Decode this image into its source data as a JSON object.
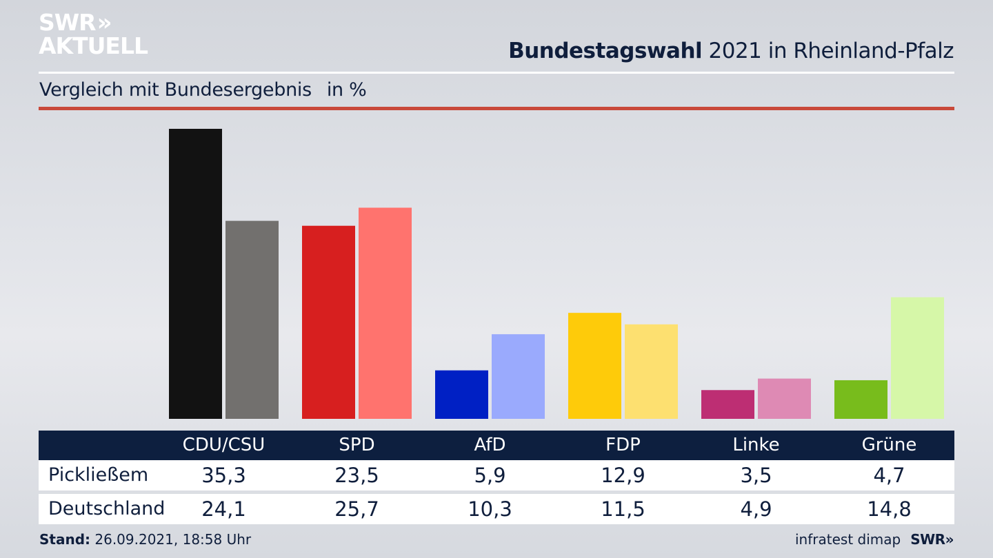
{
  "brand": {
    "logo_line1": "SWR",
    "logo_chevron": "»",
    "logo_line2": "AKTUELL"
  },
  "header": {
    "title_bold": "Bundestagswahl",
    "title_rest": " 2021 in Rheinland-Pfalz",
    "subtitle": "Vergleich mit Bundesergebnis",
    "unit": "in %"
  },
  "colors": {
    "accent_rule": "#c9493a",
    "table_header_bg": "#0d1f3f",
    "text": "#0f1e3c"
  },
  "table": {
    "headers": [
      "CDU/CSU",
      "SPD",
      "AfD",
      "FDP",
      "Linke",
      "Grüne"
    ],
    "rows": [
      {
        "label": "Pickließem",
        "values": [
          "35,3",
          "23,5",
          "5,9",
          "12,9",
          "3,5",
          "4,7"
        ]
      },
      {
        "label": "Deutschland",
        "values": [
          "24,1",
          "25,7",
          "10,3",
          "11,5",
          "4,9",
          "14,8"
        ]
      }
    ]
  },
  "footer": {
    "stand_label": "Stand:",
    "stand_value": " 26.09.2021, 18:58 Uhr",
    "source": "infratest dimap",
    "swr": "SWR»"
  },
  "chart_data": {
    "type": "bar",
    "title": "Bundestagswahl 2021 in Rheinland-Pfalz",
    "subtitle": "Vergleich mit Bundesergebnis in %",
    "xlabel": "",
    "ylabel": "%",
    "ylim": [
      0,
      35.3
    ],
    "grid": false,
    "categories": [
      "CDU/CSU",
      "SPD",
      "AfD",
      "FDP",
      "Linke",
      "Grüne"
    ],
    "series": [
      {
        "name": "Pickließem",
        "values": [
          35.3,
          23.5,
          5.9,
          12.9,
          3.5,
          4.7
        ],
        "colors": [
          "#121212",
          "#d71f1f",
          "#0020c4",
          "#fecb0a",
          "#bd2e73",
          "#78bc1c"
        ]
      },
      {
        "name": "Deutschland",
        "values": [
          24.1,
          25.7,
          10.3,
          11.5,
          4.9,
          14.8
        ],
        "colors": [
          "#72706e",
          "#ff736e",
          "#9aaafd",
          "#fde070",
          "#de8ab4",
          "#d6f7a8"
        ]
      }
    ]
  }
}
